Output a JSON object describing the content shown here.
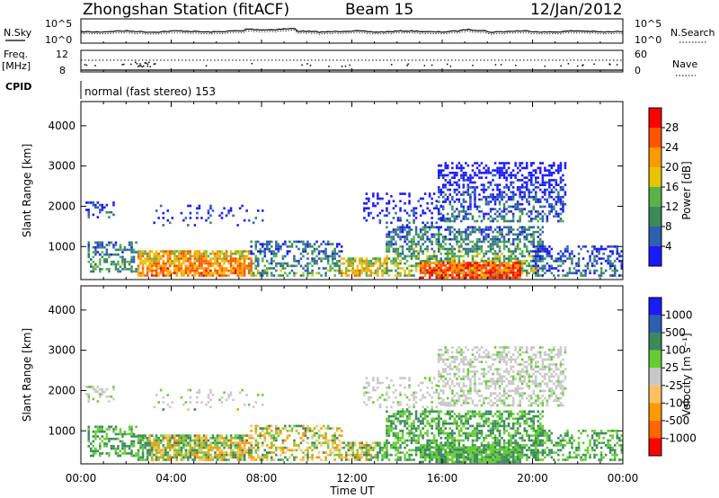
{
  "header": {
    "station_title": "Zhongshan Station (fitACF)",
    "beam": "Beam 15",
    "date": "12/Jan/2012"
  },
  "status_panels": {
    "nsky_label": "N.Sky",
    "nsearch_label": "N.Search",
    "freq_label_1": "Freq.",
    "freq_label_2": "[MHz]",
    "nave_label": "Nave",
    "cpid_label": "CPID",
    "cpid_text": "normal (fast stereo) 153",
    "noise_left_ticks": [
      "10^5",
      "10^0"
    ],
    "noise_right_ticks": [
      "10^5",
      "10^0"
    ],
    "freq_left_ticks": [
      "12",
      "8"
    ],
    "freq_right_ticks": [
      "60",
      "0"
    ]
  },
  "colors": {
    "power": [
      "#1a1aff",
      "#2e5fb0",
      "#3a8a5c",
      "#59b24a",
      "#e8c400",
      "#ff9900",
      "#ff5500",
      "#ff0000"
    ],
    "velocity": [
      "#ff0000",
      "#ff6600",
      "#ff9900",
      "#ffc060",
      "#c8c8c8",
      "#66cc33",
      "#3a8a5c",
      "#2e5fb0",
      "#1a1aff"
    ]
  },
  "chart_data": [
    {
      "type": "heatmap",
      "name": "power",
      "ylabel": "Slant Range [km]",
      "xlabel": "Time UT",
      "x_ticks": [
        "00:00",
        "04:00",
        "08:00",
        "12:00",
        "16:00",
        "20:00",
        "00:00"
      ],
      "y_ticks": [
        1000,
        2000,
        3000,
        4000
      ],
      "ylim": [
        180,
        4600
      ],
      "colorbar_label": "Power [dB]",
      "colorbar_ticks": [
        "4",
        "8",
        "12",
        "16",
        "20",
        "24",
        "28"
      ],
      "colorbar_range": [
        0,
        30
      ]
    },
    {
      "type": "heatmap",
      "name": "velocity",
      "ylabel": "Slant Range [km]",
      "xlabel": "Time UT",
      "x_ticks": [
        "00:00",
        "04:00",
        "08:00",
        "12:00",
        "16:00",
        "20:00",
        "00:00"
      ],
      "y_ticks": [
        1000,
        2000,
        3000,
        4000
      ],
      "ylim": [
        180,
        4600
      ],
      "colorbar_label": "Velocity [m s⁻¹]",
      "colorbar_ticks": [
        "1000",
        "500",
        "100",
        "25",
        "-25",
        "-100",
        "-500",
        "-1000"
      ]
    }
  ]
}
